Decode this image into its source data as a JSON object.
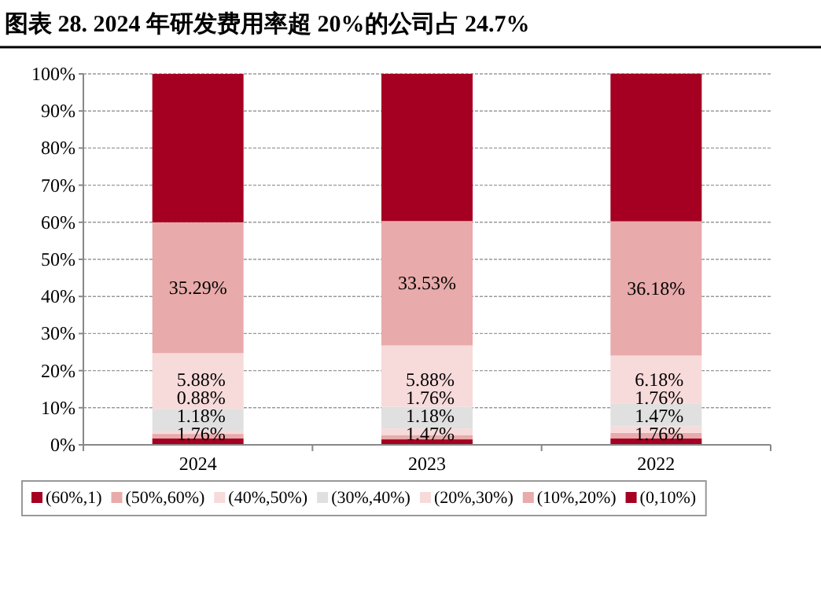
{
  "chart_data": {
    "type": "bar",
    "stacked": true,
    "title": "图表 28. 2024 年研发费用率超 20%的公司占 24.7%",
    "categories": [
      "2024",
      "2023",
      "2022"
    ],
    "series": [
      {
        "name": "(0,10%)",
        "color": "#a50021",
        "values": [
          1.76,
          1.47,
          1.76
        ],
        "value_labels": [
          "1.76%",
          "1.47%",
          "1.76%"
        ]
      },
      {
        "name": "(10%,20%)",
        "color": "#e8aaaa",
        "values": [
          1.18,
          1.18,
          1.47
        ],
        "value_labels": [
          "1.18%",
          "1.18%",
          "1.47%"
        ]
      },
      {
        "name": "(20%,30%)",
        "color": "#f7dada",
        "values": [
          0.88,
          1.76,
          1.76
        ],
        "value_labels": [
          "0.88%",
          "1.76%",
          "1.76%"
        ]
      },
      {
        "name": "(30%,40%)",
        "color": "#e0e0e0",
        "values": [
          5.88,
          5.88,
          6.18
        ],
        "value_labels": [
          "5.88%",
          "5.88%",
          "6.18%"
        ]
      },
      {
        "name": "(40%,50%)",
        "color": "#f7dada",
        "values": [
          15.0,
          16.5,
          12.9
        ]
      },
      {
        "name": "(50%,60%)",
        "color": "#e8aaaa",
        "values": [
          35.29,
          33.53,
          36.18
        ],
        "value_labels": [
          "35.29%",
          "33.53%",
          "36.18%"
        ]
      },
      {
        "name": "(60%,1)",
        "color": "#a50021",
        "values": [
          40.0,
          39.7,
          39.8
        ]
      }
    ],
    "ylim": [
      0,
      100
    ],
    "yticks": [
      {
        "value": 0,
        "label": "0%"
      },
      {
        "value": 10,
        "label": "10%"
      },
      {
        "value": 20,
        "label": "20%"
      },
      {
        "value": 30,
        "label": "30%"
      },
      {
        "value": 40,
        "label": "40%"
      },
      {
        "value": 50,
        "label": "50%"
      },
      {
        "value": 60,
        "label": "60%"
      },
      {
        "value": 70,
        "label": "70%"
      },
      {
        "value": 80,
        "label": "80%"
      },
      {
        "value": 90,
        "label": "90%"
      },
      {
        "value": 100,
        "label": "100%"
      }
    ],
    "grid": "y",
    "legend": "bottom"
  }
}
